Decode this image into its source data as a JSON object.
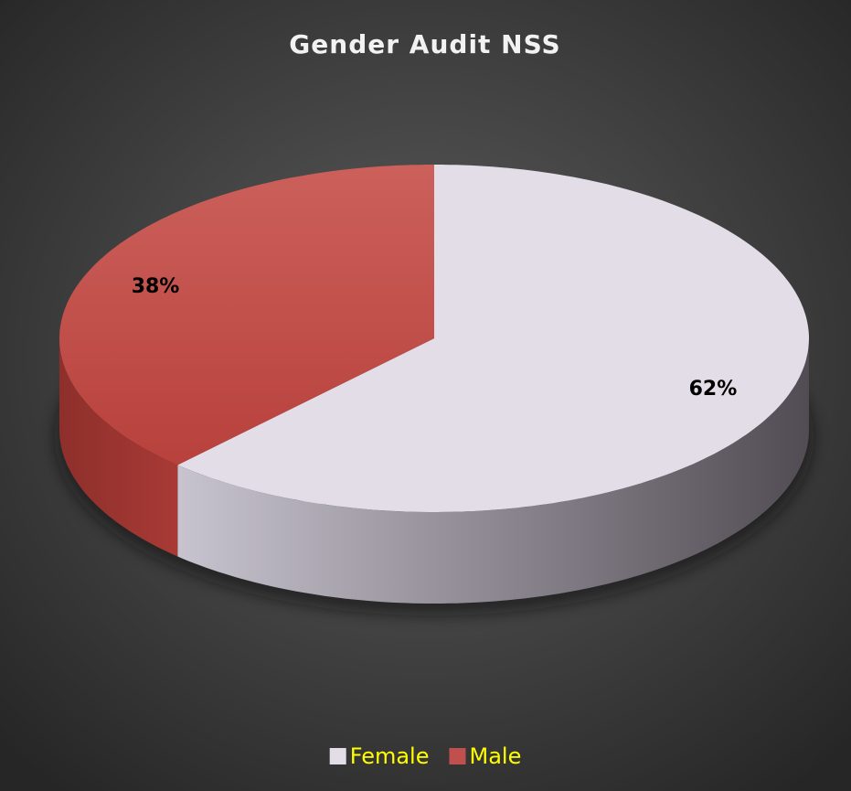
{
  "chart_data": {
    "type": "pie",
    "title": "Gender Audit NSS",
    "categories": [
      "Female",
      "Male"
    ],
    "values": [
      62,
      38
    ],
    "value_labels": [
      "62%",
      "38%"
    ],
    "colors": [
      "#e3dde8",
      "#c0504d"
    ],
    "legend": "bottom"
  }
}
